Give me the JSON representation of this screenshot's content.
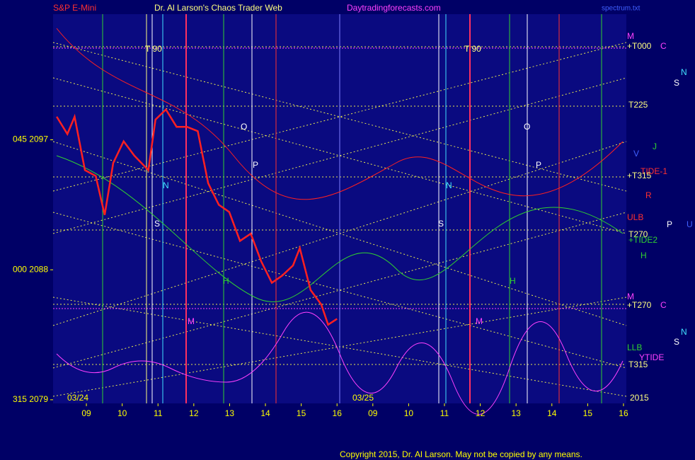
{
  "chart_data": {
    "type": "line",
    "header": {
      "symbol": "S&P E-Mini",
      "site": "Dr. Al Larson's Chaos Trader Web",
      "url": "Daytradingforecasts.com",
      "file": "spectrum.txt"
    },
    "copyright": "Copyright 2015, Dr. Al Larson. May not be copied by any means.",
    "day_labels": [
      "03/24",
      "03/25"
    ],
    "x": [
      8.17,
      8.47,
      8.67,
      8.96,
      9.26,
      9.51,
      9.75,
      10.04,
      10.34,
      10.73,
      10.93,
      11.22,
      11.52,
      11.81,
      12.11,
      12.4,
      12.7,
      12.99,
      13.29,
      13.59,
      13.88,
      14.18,
      14.47,
      14.77,
      14.96,
      15.26,
      15.56,
      15.75,
      16.0
    ],
    "values": [
      2098.6,
      2097.4,
      2098.6,
      2094.9,
      2094.5,
      2091.8,
      2095.4,
      2096.9,
      2095.9,
      2094.9,
      2098.4,
      2099.1,
      2097.9,
      2097.9,
      2097.6,
      2094.0,
      2092.5,
      2092.0,
      2090.0,
      2090.5,
      2088.6,
      2087.1,
      2087.6,
      2088.3,
      2089.5,
      2086.6,
      2085.6,
      2084.2,
      2084.6
    ],
    "color": "#ff2020",
    "xlim": [
      8.07,
      24.08
    ],
    "ylim": [
      2078.75,
      2105.7
    ],
    "xticks": [
      {
        "value": 9,
        "label": "09"
      },
      10,
      11,
      12,
      13,
      14,
      15,
      16,
      {
        "value": 17,
        "label": "09"
      },
      {
        "value": 18,
        "label": "10"
      },
      {
        "value": 19,
        "label": "11"
      },
      {
        "value": 20,
        "label": "12"
      },
      {
        "value": 21,
        "label": "13"
      },
      {
        "value": 22,
        "label": "14"
      },
      {
        "value": 23,
        "label": "15"
      },
      {
        "value": 24,
        "label": "16"
      }
    ],
    "yticks": [
      {
        "value": 2079,
        "label": "315  2079"
      },
      {
        "value": 2088,
        "label": "000  2088"
      },
      {
        "value": 2097,
        "label": "045  2097"
      }
    ],
    "annotations": [
      "T  90",
      "T  90",
      "O",
      "P",
      "N",
      "S",
      "H",
      "M",
      "O",
      "P",
      "N",
      "S",
      "H",
      "M"
    ],
    "right_labels": [
      "M",
      "+T000",
      "C",
      "N",
      "S",
      "T225",
      "V",
      "J",
      "TIDE-1",
      "+T315",
      "R",
      "ULB",
      "P",
      "U",
      "T270",
      "+TIDE2",
      "H",
      "M",
      "+T270",
      "C",
      "N",
      "S",
      "LLB",
      "T315",
      "YTIDE",
      "2015"
    ]
  }
}
